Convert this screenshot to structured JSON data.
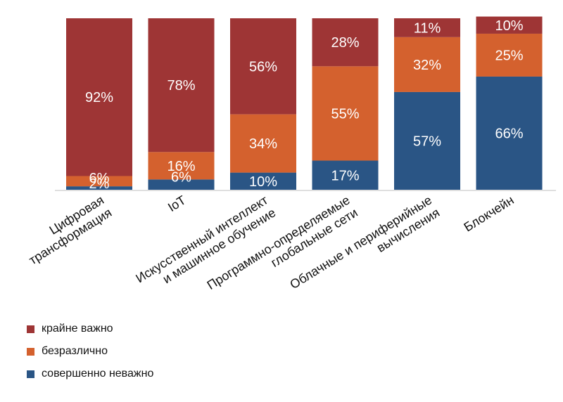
{
  "chart_data": {
    "type": "bar",
    "stacked": true,
    "percent": true,
    "categories": [
      [
        "Цифровая",
        "трансформация"
      ],
      [
        "IoT"
      ],
      [
        "Искусственный интеллект",
        "и машинное обучение"
      ],
      [
        "Программно-определяемые",
        "глобальные сети"
      ],
      [
        "Облачные и периферийные",
        "вычисления"
      ],
      [
        "Блокчейн"
      ]
    ],
    "series": [
      {
        "name": "совершенно неважно",
        "color": "#2a5585",
        "values": [
          2,
          6,
          10,
          17,
          57,
          66
        ]
      },
      {
        "name": "безразлично",
        "color": "#d4612e",
        "values": [
          6,
          16,
          34,
          55,
          32,
          25
        ]
      },
      {
        "name": "крайне важно",
        "color": "#9e3535",
        "values": [
          92,
          78,
          56,
          28,
          11,
          10
        ]
      }
    ],
    "legend": {
      "placement": "bottom-left",
      "order": [
        "крайне важно",
        "безразлично",
        "совершенно неважно"
      ]
    },
    "ylim": [
      0,
      100
    ],
    "grid": false
  }
}
